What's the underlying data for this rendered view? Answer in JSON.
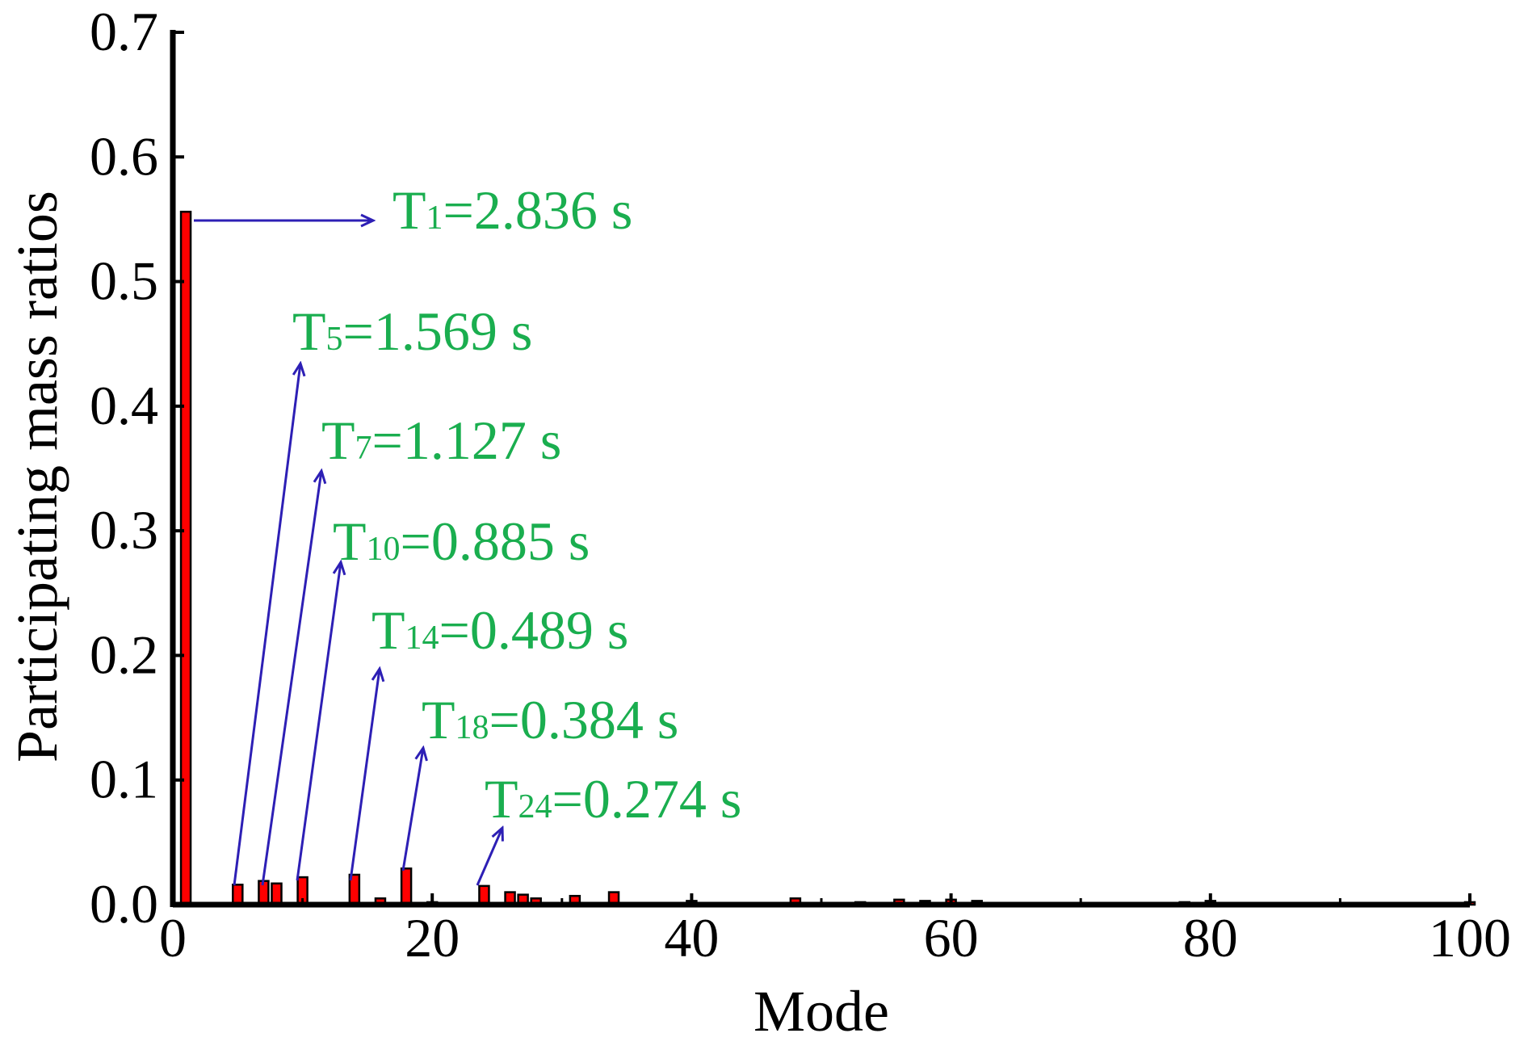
{
  "chart_data": {
    "type": "bar",
    "xlabel": "Mode",
    "ylabel": "Participating mass ratios",
    "xlim": [
      0,
      100
    ],
    "ylim": [
      0,
      0.7
    ],
    "xticks": [
      "0",
      "20",
      "40",
      "60",
      "80",
      "100"
    ],
    "yticks": [
      "0.0",
      "0.1",
      "0.2",
      "0.3",
      "0.4",
      "0.5",
      "0.6",
      "0.7"
    ],
    "grid": false,
    "legend": "none",
    "colors": {
      "bar": "#ff0000",
      "arrow": "#2d1fb5",
      "annotation": "#1aae4f"
    },
    "x": [
      1,
      5,
      7,
      8,
      10,
      14,
      16,
      18,
      20,
      24,
      26,
      27,
      28,
      31,
      34,
      40,
      48,
      53,
      56,
      58,
      60,
      62,
      77,
      78,
      80,
      100
    ],
    "values": [
      0.556,
      0.016,
      0.019,
      0.017,
      0.022,
      0.024,
      0.005,
      0.029,
      0.002,
      0.015,
      0.01,
      0.008,
      0.005,
      0.007,
      0.01,
      0.003,
      0.005,
      0.002,
      0.004,
      0.003,
      0.004,
      0.003,
      0.001,
      0.002,
      0.003,
      0.002
    ],
    "annotations": [
      {
        "mode": 1,
        "label": "T",
        "sub": "1",
        "rest": "=2.836 s"
      },
      {
        "mode": 5,
        "label": "T",
        "sub": "5",
        "rest": "=1.569 s"
      },
      {
        "mode": 7,
        "label": "T",
        "sub": "7",
        "rest": "=1.127 s"
      },
      {
        "mode": 10,
        "label": "T",
        "sub": "10",
        "rest": "=0.885 s"
      },
      {
        "mode": 14,
        "label": "T",
        "sub": "14",
        "rest": "=0.489 s"
      },
      {
        "mode": 18,
        "label": "T",
        "sub": "18",
        "rest": "=0.384 s"
      },
      {
        "mode": 24,
        "label": "T",
        "sub": "24",
        "rest": "=0.274 s"
      }
    ]
  }
}
